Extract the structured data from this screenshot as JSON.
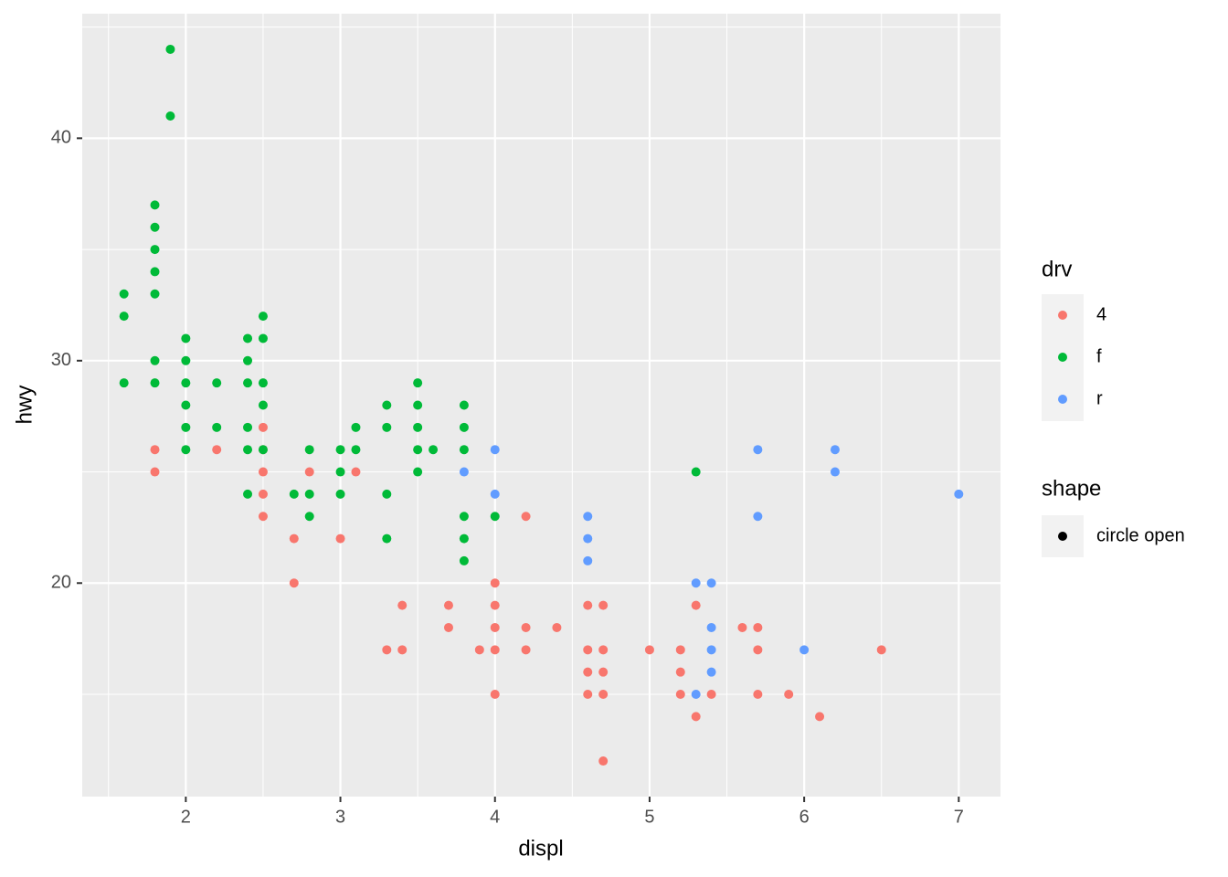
{
  "chart_data": {
    "type": "scatter",
    "x_label": "displ",
    "y_label": "hwy",
    "xlim": [
      1.33,
      7.27
    ],
    "ylim": [
      10.4,
      45.6
    ],
    "xticks": [
      2,
      3,
      4,
      5,
      6,
      7
    ],
    "yticks": [
      20,
      30,
      40
    ],
    "x_minor_ticks": [
      1.5,
      2.5,
      3.5,
      4.5,
      5.5,
      6.5
    ],
    "y_minor_ticks": [
      15,
      25,
      35,
      45
    ],
    "grid": true,
    "legend_title": "drv",
    "shape_legend": {
      "title": "shape",
      "label": "circle open",
      "color": "#000000"
    },
    "series": [
      {
        "name": "4",
        "color": "#F8766D",
        "x": [
          1.8,
          1.8,
          2.2,
          2.5,
          2.5,
          2.5,
          2.5,
          2.5,
          2.7,
          2.7,
          2.8,
          3,
          3.1,
          3.3,
          3.4,
          3.4,
          3.7,
          3.7,
          3.9,
          4,
          4,
          4,
          4,
          4,
          4.2,
          4.2,
          4.2,
          4.4,
          4.6,
          4.6,
          4.6,
          4.6,
          4.7,
          4.7,
          4.7,
          4.7,
          4.7,
          5,
          5.2,
          5.2,
          5.2,
          5.3,
          5.3,
          5.4,
          5.6,
          5.7,
          5.7,
          5.7,
          5.9,
          6.1,
          6.5
        ],
        "values": [
          26,
          25,
          26,
          27,
          26,
          25,
          24,
          23,
          22,
          20,
          25,
          22,
          25,
          17,
          19,
          17,
          19,
          18,
          17,
          20,
          19,
          18,
          17,
          15,
          23,
          18,
          17,
          18,
          19,
          17,
          16,
          15,
          19,
          17,
          16,
          15,
          12,
          17,
          17,
          16,
          15,
          19,
          14,
          15,
          18,
          18,
          17,
          15,
          15,
          14,
          17
        ]
      },
      {
        "name": "f",
        "color": "#00BA38",
        "x": [
          1.6,
          1.6,
          1.6,
          1.8,
          1.8,
          1.8,
          1.8,
          1.8,
          1.8,
          1.8,
          1.9,
          1.9,
          2,
          2,
          2,
          2,
          2,
          2,
          2.2,
          2.2,
          2.4,
          2.4,
          2.4,
          2.4,
          2.4,
          2.4,
          2.5,
          2.5,
          2.5,
          2.5,
          2.5,
          2.7,
          2.8,
          2.8,
          2.8,
          3,
          3,
          3,
          3.1,
          3.1,
          3.3,
          3.3,
          3.3,
          3.3,
          3.5,
          3.5,
          3.5,
          3.5,
          3.5,
          3.6,
          3.8,
          3.8,
          3.8,
          3.8,
          3.8,
          3.8,
          4,
          5.3
        ],
        "values": [
          33,
          32,
          29,
          37,
          36,
          35,
          34,
          33,
          30,
          29,
          44,
          41,
          31,
          30,
          29,
          28,
          27,
          26,
          29,
          27,
          31,
          30,
          29,
          27,
          26,
          24,
          32,
          31,
          29,
          28,
          26,
          24,
          26,
          24,
          23,
          26,
          25,
          24,
          27,
          26,
          28,
          27,
          24,
          22,
          29,
          28,
          27,
          26,
          25,
          26,
          28,
          27,
          26,
          23,
          22,
          21,
          23,
          25
        ]
      },
      {
        "name": "r",
        "color": "#619CFF",
        "x": [
          3.8,
          4,
          4,
          4.6,
          4.6,
          4.6,
          5.3,
          5.3,
          5.4,
          5.4,
          5.4,
          5.4,
          5.7,
          5.7,
          6,
          6.2,
          6.2,
          7
        ],
        "values": [
          25,
          26,
          24,
          23,
          22,
          21,
          20,
          15,
          20,
          18,
          17,
          16,
          26,
          23,
          17,
          26,
          25,
          24
        ]
      }
    ]
  }
}
